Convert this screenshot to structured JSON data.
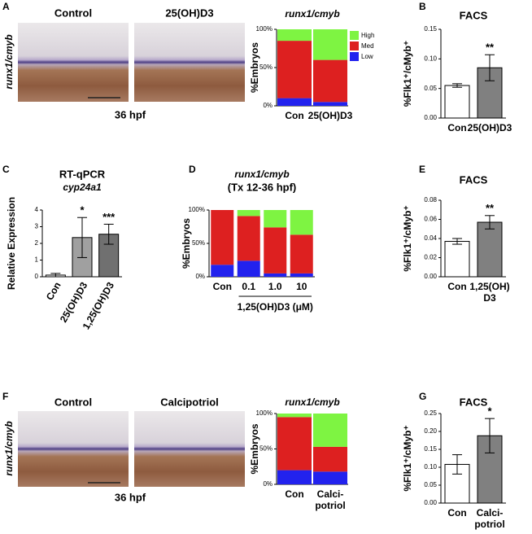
{
  "panel_letters": [
    "A",
    "B",
    "C",
    "D",
    "E",
    "F",
    "G"
  ],
  "micrographs": [
    {
      "side_label": "runx1/cmyb",
      "captions": [
        "Control",
        "25(OH)D3"
      ],
      "stage": "36 hpf"
    },
    {
      "side_label": "runx1/cmyb",
      "captions": [
        "Control",
        "Calcipotriol"
      ],
      "stage": "36 hpf"
    }
  ],
  "chart_data": [
    {
      "type": "stacked_bar",
      "title": "runx1/cmyb",
      "ylabel": "%Embryos",
      "categories": [
        "Con",
        "25(OH)D3"
      ],
      "series": [
        {
          "name": "Low",
          "color": "#2222ee",
          "values": [
            10,
            5
          ]
        },
        {
          "name": "Med",
          "color": "#dd2020",
          "values": [
            75,
            55
          ]
        },
        {
          "name": "High",
          "color": "#7ef442",
          "values": [
            15,
            40
          ]
        }
      ],
      "ylim": [
        0,
        100
      ],
      "yticks": [
        {
          "value": 0,
          "label": "0%"
        },
        {
          "value": 50,
          "label": "50%"
        },
        {
          "value": 100,
          "label": "100%"
        }
      ],
      "legend": "right"
    },
    {
      "type": "bar",
      "title": "FACS",
      "ylabel": "%Flk1⁺/cMyb⁺",
      "categories": [
        "Con",
        "25(OH)D3"
      ],
      "values": [
        0.055,
        0.085
      ],
      "errors": [
        0.003,
        0.022
      ],
      "colors": [
        "#ffffff",
        "#808080"
      ],
      "annotations": [
        null,
        "**"
      ],
      "ylim": [
        0,
        0.15
      ],
      "yticks": [
        {
          "value": 0,
          "label": "0.00"
        },
        {
          "value": 0.05,
          "label": "0.05"
        },
        {
          "value": 0.1,
          "label": "0.10"
        },
        {
          "value": 0.15,
          "label": "0.15"
        }
      ]
    },
    {
      "type": "bar",
      "title": "RT-qPCR",
      "subtitle": "cyp24a1",
      "ylabel": "Relative Expression",
      "categories": [
        "Con",
        "25(OH)D3",
        "1,25(OH)D3"
      ],
      "values": [
        0.1,
        2.35,
        2.55
      ],
      "errors": [
        0.1,
        1.2,
        0.6
      ],
      "colors": [
        "#ffffff",
        "#a0a0a0",
        "#707070"
      ],
      "annotations": [
        null,
        "*",
        "***"
      ],
      "ylim": [
        0,
        4
      ],
      "yticks": [
        0,
        1,
        2,
        3,
        4
      ]
    },
    {
      "type": "stacked_bar",
      "title": "runx1/cmyb",
      "subtitle": "(Tx 12-36 hpf)",
      "ylabel": "%Embryos",
      "xlabel": "1,25(OH)D3 (μM)",
      "categories": [
        "Con",
        "0.1",
        "1.0",
        "10"
      ],
      "series": [
        {
          "name": "Low",
          "color": "#2222ee",
          "values": [
            18,
            24,
            5,
            5
          ]
        },
        {
          "name": "Med",
          "color": "#dd2020",
          "values": [
            82,
            67,
            69,
            58
          ]
        },
        {
          "name": "High",
          "color": "#7ef442",
          "values": [
            0,
            9,
            26,
            37
          ]
        }
      ],
      "ylim": [
        0,
        100
      ],
      "yticks": [
        {
          "value": 0,
          "label": "0%"
        },
        {
          "value": 50,
          "label": "50%"
        },
        {
          "value": 100,
          "label": "100%"
        }
      ]
    },
    {
      "type": "bar",
      "title": "FACS",
      "ylabel": "%Flk1⁺/cMyb⁺",
      "categories": [
        "Con",
        [
          "1,25(OH)",
          "D3"
        ]
      ],
      "values": [
        0.037,
        0.057
      ],
      "errors": [
        0.003,
        0.007
      ],
      "colors": [
        "#ffffff",
        "#808080"
      ],
      "annotations": [
        null,
        "**"
      ],
      "ylim": [
        0,
        0.08
      ],
      "yticks": [
        {
          "value": 0,
          "label": "0.00"
        },
        {
          "value": 0.02,
          "label": "0.02"
        },
        {
          "value": 0.04,
          "label": "0.04"
        },
        {
          "value": 0.06,
          "label": "0.06"
        },
        {
          "value": 0.08,
          "label": "0.08"
        }
      ]
    },
    {
      "type": "stacked_bar",
      "title": "runx1/cmyb",
      "ylabel": "%Embryos",
      "categories": [
        "Con",
        [
          "Calci-",
          "potriol"
        ]
      ],
      "series": [
        {
          "name": "Low",
          "color": "#2222ee",
          "values": [
            20,
            18
          ]
        },
        {
          "name": "Med",
          "color": "#dd2020",
          "values": [
            75,
            35
          ]
        },
        {
          "name": "High",
          "color": "#7ef442",
          "values": [
            5,
            47
          ]
        }
      ],
      "ylim": [
        0,
        100
      ],
      "yticks": [
        {
          "value": 0,
          "label": "0%"
        },
        {
          "value": 50,
          "label": "50%"
        },
        {
          "value": 100,
          "label": "100%"
        }
      ]
    },
    {
      "type": "bar",
      "title": "FACS",
      "ylabel": "%Flk1⁺/cMyb⁺",
      "categories": [
        "Con",
        [
          "Calci-",
          "potriol"
        ]
      ],
      "values": [
        0.108,
        0.188
      ],
      "errors": [
        0.027,
        0.048
      ],
      "colors": [
        "#ffffff",
        "#808080"
      ],
      "annotations": [
        null,
        "*"
      ],
      "ylim": [
        0,
        0.25
      ],
      "yticks": [
        {
          "value": 0,
          "label": "0.00"
        },
        {
          "value": 0.05,
          "label": "0.05"
        },
        {
          "value": 0.1,
          "label": "0.10"
        },
        {
          "value": 0.15,
          "label": "0.15"
        },
        {
          "value": 0.2,
          "label": "0.20"
        },
        {
          "value": 0.25,
          "label": "0.25"
        }
      ]
    }
  ]
}
